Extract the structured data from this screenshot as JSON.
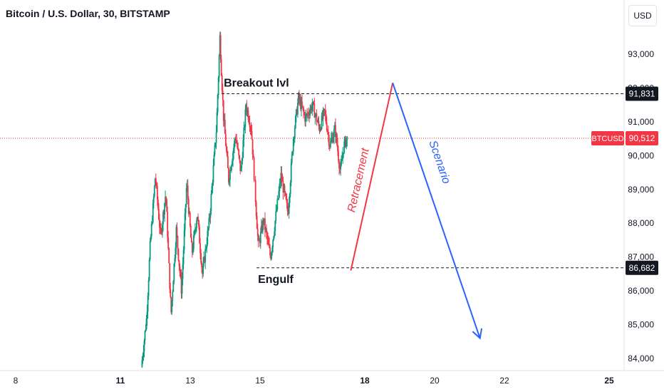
{
  "header": {
    "title": "Bitcoin / U.S. Dollar, 30, BITSTAMP",
    "currency": "USD"
  },
  "colors": {
    "up": "#089981",
    "down": "#f23645",
    "retracement": "#f23645",
    "scenario": "#2962ff",
    "price_line": "#f23645",
    "level_line": "#131722"
  },
  "chart_data": {
    "type": "candlestick",
    "symbol": "BTCUSD",
    "x_ticks": [
      {
        "label": "8",
        "day": 8,
        "bold": false
      },
      {
        "label": "11",
        "day": 11,
        "bold": true
      },
      {
        "label": "13",
        "day": 13,
        "bold": false
      },
      {
        "label": "15",
        "day": 15,
        "bold": false
      },
      {
        "label": "18",
        "day": 18,
        "bold": true
      },
      {
        "label": "20",
        "day": 20,
        "bold": false
      },
      {
        "label": "22",
        "day": 22,
        "bold": false
      },
      {
        "label": "25",
        "day": 25,
        "bold": true
      }
    ],
    "y_ticks": [
      "84,000",
      "85,000",
      "86,000",
      "87,000",
      "88,000",
      "89,000",
      "90,000",
      "91,000",
      "92,000",
      "93,000"
    ],
    "y_tick_values": [
      84000,
      85000,
      86000,
      87000,
      88000,
      89000,
      90000,
      91000,
      92000,
      93000
    ],
    "ylim": [
      83750,
      94300
    ],
    "xlim": [
      7.5,
      25.3
    ],
    "current_price": {
      "label": "BTCUSD",
      "value": 90512,
      "value_label": "90,512"
    },
    "levels": [
      {
        "name": "Breakout lvl",
        "value": 91831,
        "value_label": "91,831",
        "start_day": 13.9
      },
      {
        "name": "Engulf",
        "value": 86682,
        "value_label": "86,682",
        "start_day": 14.9
      }
    ],
    "price_path": [
      [
        11.6,
        83750
      ],
      [
        11.75,
        85200
      ],
      [
        11.85,
        87300
      ],
      [
        12.0,
        89400
      ],
      [
        12.15,
        87600
      ],
      [
        12.3,
        88900
      ],
      [
        12.45,
        85300
      ],
      [
        12.6,
        87800
      ],
      [
        12.75,
        86000
      ],
      [
        12.9,
        89200
      ],
      [
        13.05,
        87100
      ],
      [
        13.2,
        88300
      ],
      [
        13.35,
        86500
      ],
      [
        13.55,
        88100
      ],
      [
        13.75,
        90800
      ],
      [
        13.85,
        93500
      ],
      [
        13.95,
        91200
      ],
      [
        14.1,
        89300
      ],
      [
        14.3,
        90600
      ],
      [
        14.45,
        89500
      ],
      [
        14.6,
        91500
      ],
      [
        14.75,
        90800
      ],
      [
        14.85,
        89100
      ],
      [
        14.95,
        87300
      ],
      [
        15.1,
        88100
      ],
      [
        15.3,
        87000
      ],
      [
        15.45,
        88200
      ],
      [
        15.6,
        89400
      ],
      [
        15.8,
        88300
      ],
      [
        15.95,
        90500
      ],
      [
        16.1,
        91700
      ],
      [
        16.3,
        91100
      ],
      [
        16.5,
        91500
      ],
      [
        16.7,
        90800
      ],
      [
        16.85,
        91300
      ],
      [
        17.0,
        90300
      ],
      [
        17.15,
        90800
      ],
      [
        17.3,
        89500
      ],
      [
        17.4,
        90300
      ],
      [
        17.5,
        90512
      ]
    ],
    "scenario": {
      "retracement_label": "Retracement",
      "scenario_label": "Scenario",
      "start": [
        17.6,
        86600
      ],
      "peak": [
        18.8,
        92150
      ],
      "end": [
        21.3,
        84600
      ]
    }
  }
}
